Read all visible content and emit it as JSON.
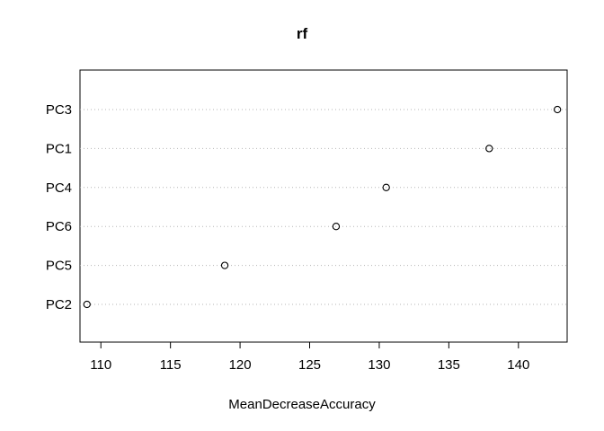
{
  "chart_data": {
    "type": "scatter",
    "title": "rf",
    "xlabel": "MeanDecreaseAccuracy",
    "ylabel": "",
    "categories": [
      "PC3",
      "PC1",
      "PC4",
      "PC6",
      "PC5",
      "PC2"
    ],
    "values": [
      142.8,
      137.9,
      130.5,
      126.9,
      118.9,
      109.0
    ],
    "xlim": [
      108.5,
      143.5
    ],
    "xticks": [
      110,
      115,
      120,
      125,
      130,
      135,
      140
    ],
    "grid": "dotted horizontal lines per category",
    "marker": "open circle",
    "legend": "none"
  }
}
